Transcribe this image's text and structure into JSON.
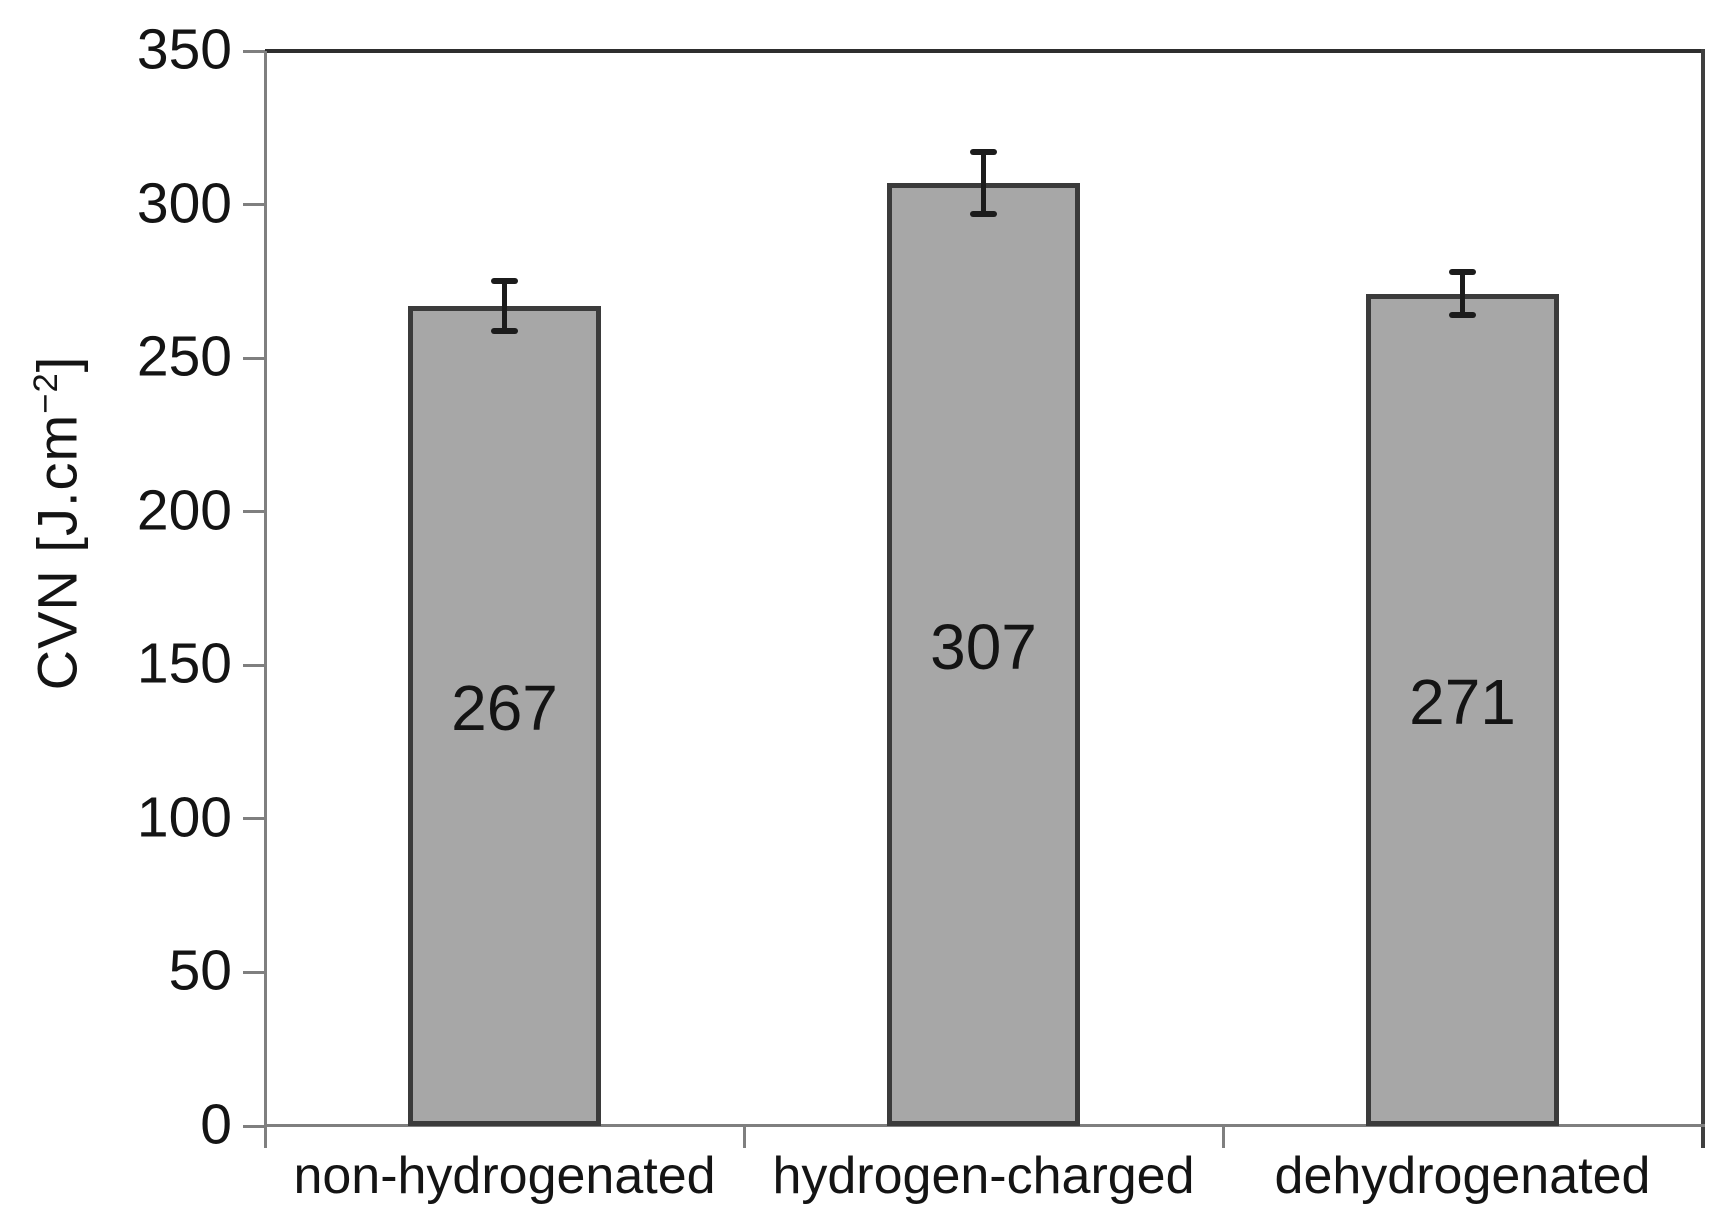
{
  "chart_data": {
    "type": "bar",
    "title": "",
    "categories": [
      "non-hydrogenated",
      "hydrogen-charged",
      "dehydrogenated"
    ],
    "values": [
      267,
      307,
      271
    ],
    "bar_labels": [
      "267",
      "307",
      "271"
    ],
    "error_bars": [
      8,
      10,
      7
    ],
    "ylabel": "CVN [J.cm⁻²]",
    "ylabel_parts": {
      "base": "CVN [J.cm",
      "exponent": "−2",
      "close": "]"
    },
    "xlabel": "",
    "ylim": [
      0,
      350
    ],
    "yticks": [
      0,
      50,
      100,
      150,
      200,
      250,
      300,
      350
    ],
    "ytick_labels": [
      "0",
      "50",
      "100",
      "150",
      "200",
      "250",
      "300",
      "350"
    ],
    "grid": false,
    "colors": {
      "bar_fill": "#a7a7a7",
      "bar_border": "#3b3b3b",
      "error_bar": "#1c1c1c",
      "axis_line": "#7f7f7f",
      "plot_border": "#2e2e2e",
      "text": "#141414"
    }
  }
}
